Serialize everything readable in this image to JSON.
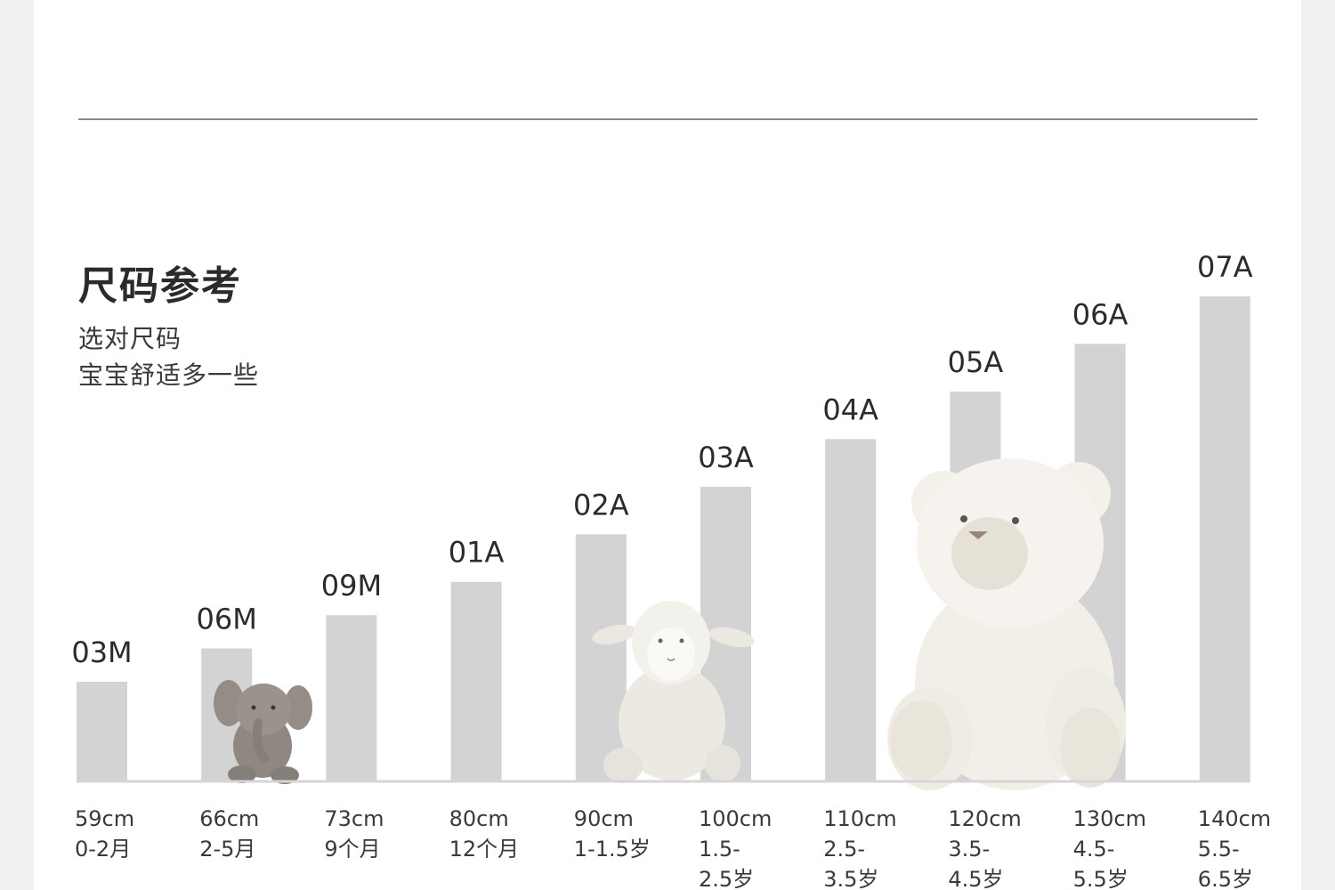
{
  "header": {
    "title": "尺码参考",
    "subtitle_line1": "选对尺码",
    "subtitle_line2": "宝宝舒适多一些"
  },
  "chart_data": {
    "type": "bar",
    "categories": [
      "03M",
      "06M",
      "09M",
      "01A",
      "02A",
      "03A",
      "04A",
      "05A",
      "06A",
      "07A"
    ],
    "values": [
      59,
      66,
      73,
      80,
      90,
      100,
      110,
      120,
      130,
      140
    ],
    "value_unit": "cm",
    "x_labels": [
      [
        "59cm",
        "0-2月"
      ],
      [
        "66cm",
        "2-5月"
      ],
      [
        "73cm",
        "9个月"
      ],
      [
        "80cm",
        "12个月"
      ],
      [
        "90cm",
        "1-1.5岁"
      ],
      [
        "100cm",
        "1.5-",
        "2.5岁"
      ],
      [
        "110cm",
        "2.5-",
        "3.5岁"
      ],
      [
        "120cm",
        "3.5-",
        "4.5岁"
      ],
      [
        "130cm",
        "4.5-",
        "5.5岁"
      ],
      [
        "140cm",
        "5.5-",
        "6.5岁"
      ]
    ],
    "title": "尺码参考",
    "bar_color": "#d3d3d3",
    "grid": false
  },
  "illustrations": [
    {
      "name": "elephant-plush",
      "color": "#8e8782"
    },
    {
      "name": "lamb-plush",
      "color": "#f1efea"
    },
    {
      "name": "bear-plush",
      "color": "#f5f2ec"
    }
  ]
}
